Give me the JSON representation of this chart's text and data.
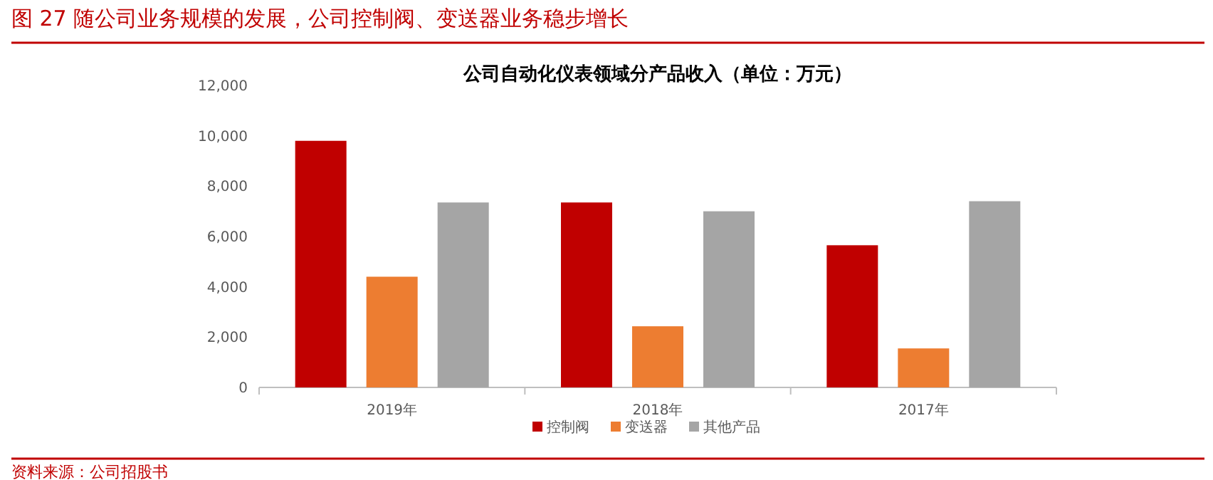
{
  "chart_data": {
    "type": "bar",
    "title": "图 27 随公司业务规模的发展，公司控制阀、变送器业务稳步增长",
    "subtitle": "公司自动化仪表领域分产品收入（单位：万元）",
    "categories": [
      "2019年",
      "2018年",
      "2017年"
    ],
    "series": [
      {
        "name": "控制阀",
        "color": "#c00000",
        "values": [
          9800,
          7350,
          5650
        ]
      },
      {
        "name": "变送器",
        "color": "#ed7d31",
        "values": [
          4400,
          2430,
          1550
        ]
      },
      {
        "name": "其他产品",
        "color": "#a5a5a5",
        "values": [
          7350,
          7000,
          7400
        ]
      }
    ],
    "ylim": [
      0,
      12000
    ],
    "yticks": [
      0,
      {
        "value": 2000,
        "label": "2,000"
      },
      {
        "value": 4000,
        "label": "4,000"
      },
      {
        "value": 6000,
        "label": "6,000"
      },
      {
        "value": 8000,
        "label": "8,000"
      },
      {
        "value": 10000,
        "label": "10,000"
      },
      {
        "value": 12000,
        "label": "12,000"
      }
    ],
    "grid": false,
    "legend": "bottom",
    "annotations": [
      "资料来源：公司招股书"
    ]
  }
}
